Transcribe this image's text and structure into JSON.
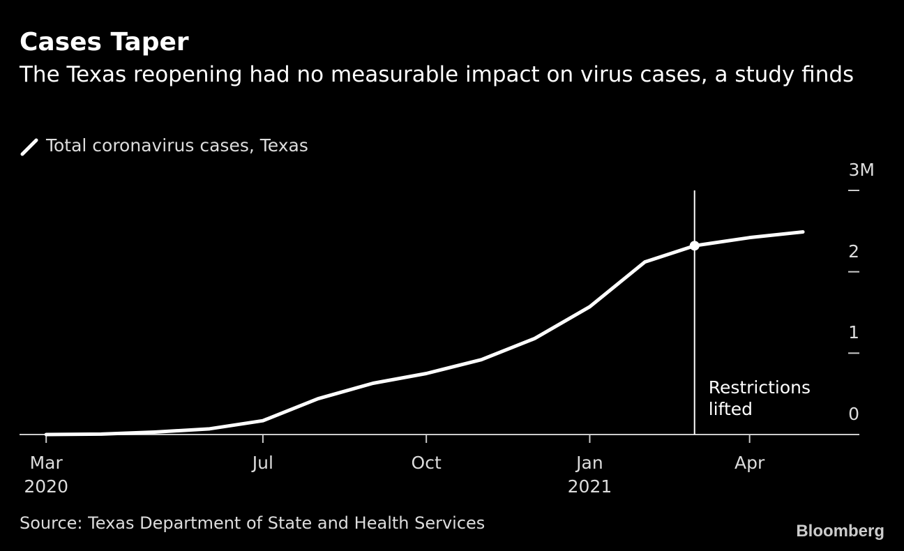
{
  "chart_data": {
    "type": "line",
    "title": "Cases Taper",
    "subtitle": "The Texas reopening had no measurable impact on virus cases, a study finds",
    "source": "Source: Texas Department of State and Health Services",
    "brand": "Bloomberg",
    "x": [
      "2020-03",
      "2020-04",
      "2020-05",
      "2020-06",
      "2020-07",
      "2020-08",
      "2020-09",
      "2020-10",
      "2020-11",
      "2020-12",
      "2021-01",
      "2021-02",
      "2021-03",
      "2021-04",
      "2021-05"
    ],
    "series": [
      {
        "name": "Total coronavirus cases, Texas",
        "color": "#ffffff",
        "values": [
          0,
          0.005,
          0.03,
          0.07,
          0.17,
          0.44,
          0.63,
          0.75,
          0.92,
          1.18,
          1.57,
          2.12,
          2.32,
          2.42,
          2.49
        ]
      }
    ],
    "xlim": [
      "2020-02-15",
      "2021-06-01"
    ],
    "xticks": [
      {
        "value": "2020-03",
        "label": "Mar 2020"
      },
      {
        "value": "2020-07",
        "label": "Jul"
      },
      {
        "value": "2020-10",
        "label": "Oct"
      },
      {
        "value": "2021-01",
        "label": "Jan 2021"
      },
      {
        "value": "2021-04",
        "label": "Apr"
      }
    ],
    "ylim": [
      0,
      3
    ],
    "yticks": [
      0,
      1,
      2,
      {
        "value": 3,
        "label": "3M"
      }
    ],
    "annotation": {
      "text": "Restrictions lifted",
      "x": "2021-03"
    }
  }
}
